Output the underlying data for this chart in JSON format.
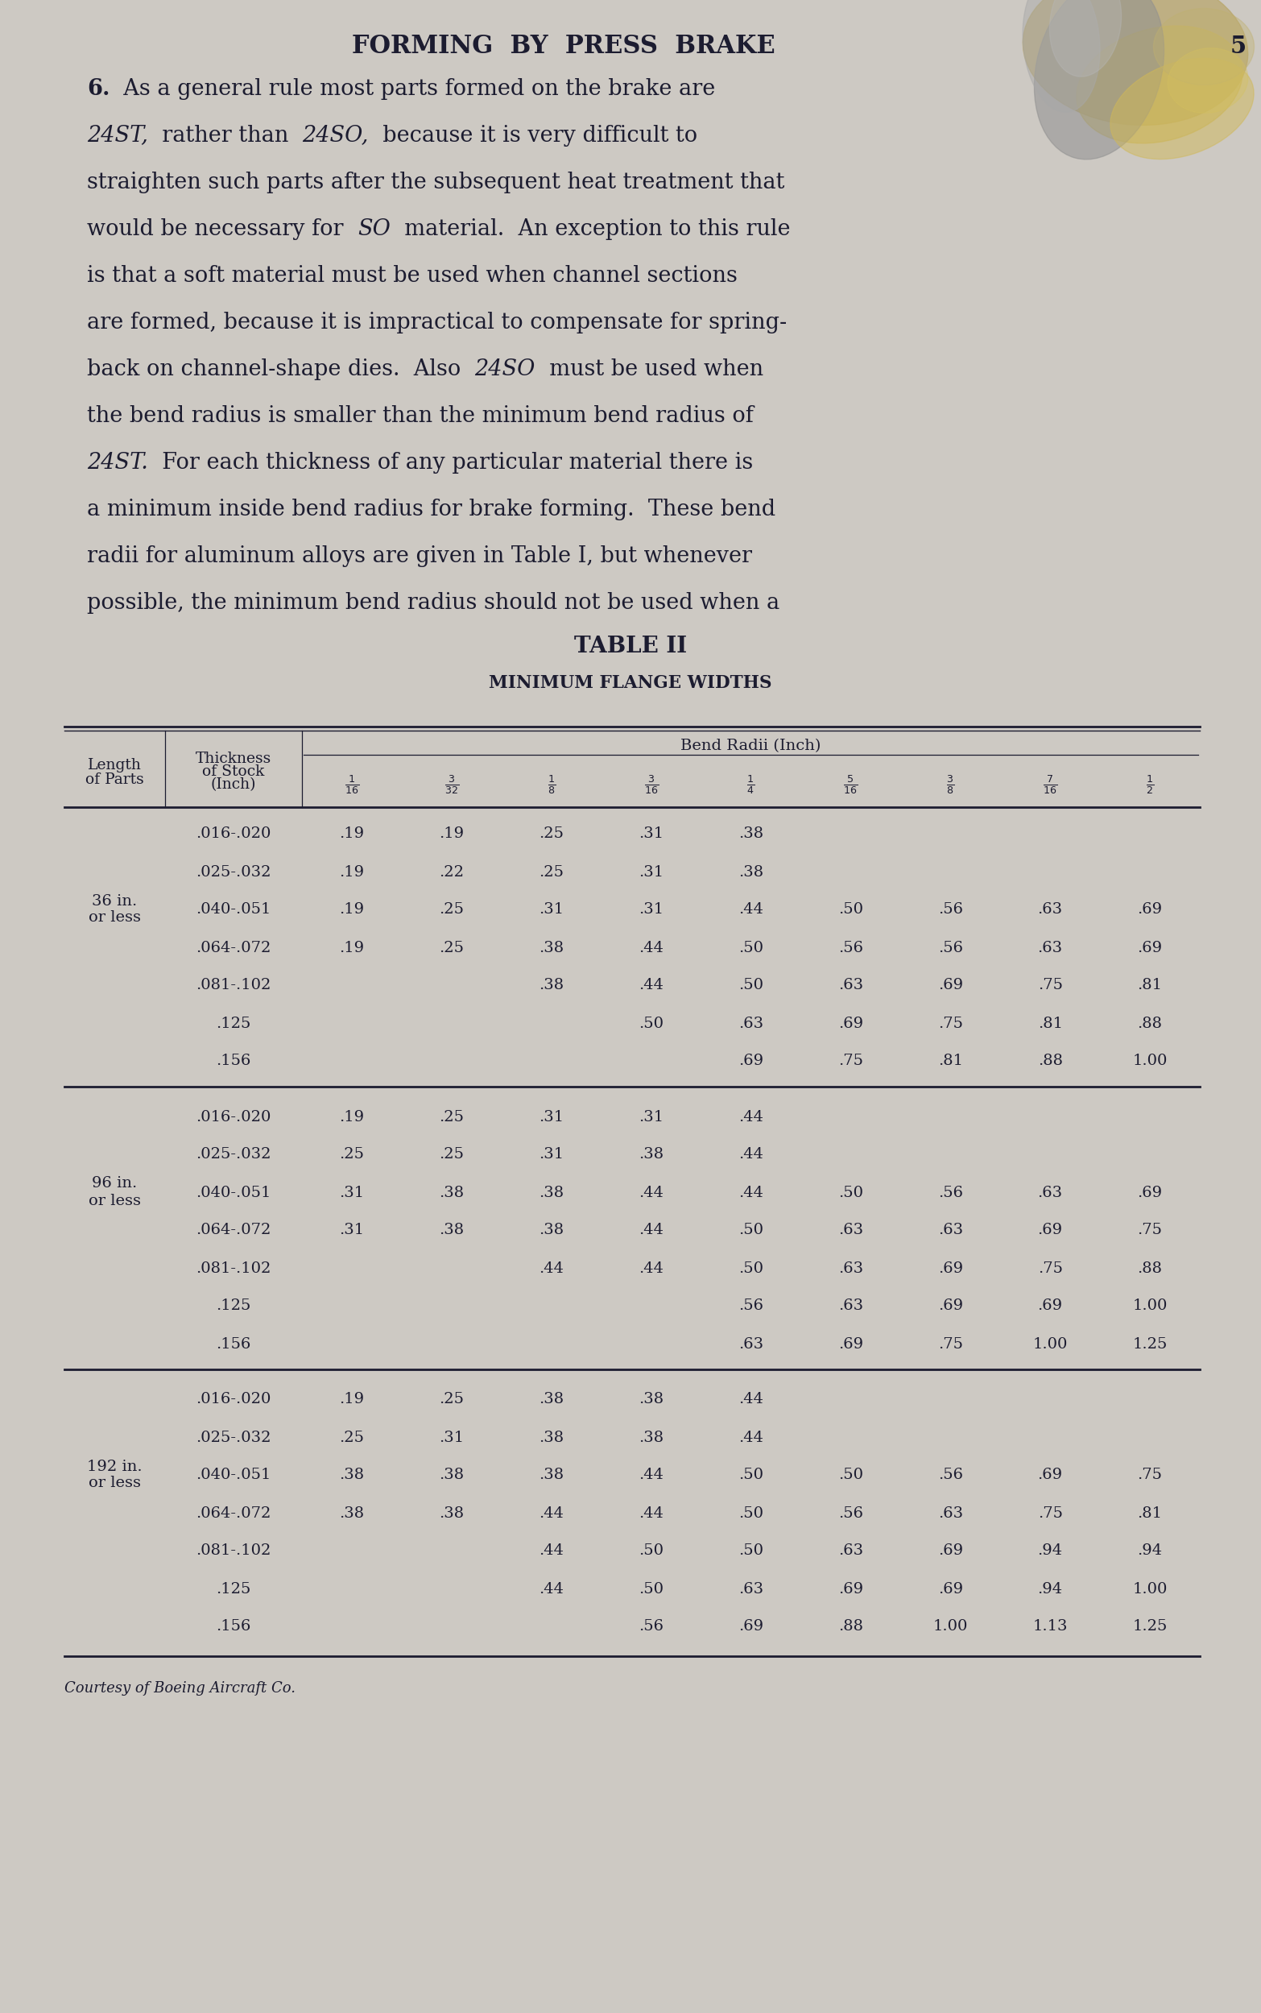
{
  "bg_color": "#cdc9c3",
  "page_title": "FORMING  BY  PRESS  BRAKE",
  "page_number": "5",
  "table_title": "TABLE II",
  "table_subtitle": "MINIMUM FLANGE WIDTHS",
  "fractions_latex": [
    "$\\frac{1}{16}$",
    "$\\frac{3}{32}$",
    "$\\frac{1}{8}$",
    "$\\frac{3}{16}$",
    "$\\frac{1}{4}$",
    "$\\frac{5}{16}$",
    "$\\frac{3}{8}$",
    "$\\frac{7}{16}$",
    "$\\frac{1}{2}$"
  ],
  "sections": [
    {
      "label": [
        "36 in.",
        "or less"
      ],
      "label_row": 2,
      "rows": [
        [
          ".016-.020",
          ".19",
          ".19",
          ".25",
          ".31",
          ".38",
          "",
          "",
          "",
          ""
        ],
        [
          ".025-.032",
          ".19",
          ".22",
          ".25",
          ".31",
          ".38",
          "",
          "",
          "",
          ""
        ],
        [
          ".040-.051",
          ".19",
          ".25",
          ".31",
          ".31",
          ".44",
          ".50",
          ".56",
          ".63",
          ".69"
        ],
        [
          ".064-.072",
          ".19",
          ".25",
          ".38",
          ".44",
          ".50",
          ".56",
          ".56",
          ".63",
          ".69"
        ],
        [
          ".081-.102",
          "",
          "",
          ".38",
          ".44",
          ".50",
          ".63",
          ".69",
          ".75",
          ".81"
        ],
        [
          ".125",
          "",
          "",
          "",
          ".50",
          ".63",
          ".69",
          ".75",
          ".81",
          ".88"
        ],
        [
          ".156",
          "",
          "",
          "",
          "",
          ".69",
          ".75",
          ".81",
          ".88",
          "1.00"
        ]
      ]
    },
    {
      "label": [
        "96 in.",
        "or less"
      ],
      "label_row": 2,
      "rows": [
        [
          ".016-.020",
          ".19",
          ".25",
          ".31",
          ".31",
          ".44",
          "",
          "",
          "",
          ""
        ],
        [
          ".025-.032",
          ".25",
          ".25",
          ".31",
          ".38",
          ".44",
          "",
          "",
          "",
          ""
        ],
        [
          ".040-.051",
          ".31",
          ".38",
          ".38",
          ".44",
          ".44",
          ".50",
          ".56",
          ".63",
          ".69"
        ],
        [
          ".064-.072",
          ".31",
          ".38",
          ".38",
          ".44",
          ".50",
          ".63",
          ".63",
          ".69",
          ".75"
        ],
        [
          ".081-.102",
          "",
          "",
          ".44",
          ".44",
          ".50",
          ".63",
          ".69",
          ".75",
          ".88"
        ],
        [
          ".125",
          "",
          "",
          "",
          "",
          ".56",
          ".63",
          ".69",
          ".69",
          "1.00"
        ],
        [
          ".156",
          "",
          "",
          "",
          "",
          ".63",
          ".69",
          ".75",
          "1.00",
          "1.25"
        ]
      ]
    },
    {
      "label": [
        "192 in.",
        "or less"
      ],
      "label_row": 2,
      "rows": [
        [
          ".016-.020",
          ".19",
          ".25",
          ".38",
          ".38",
          ".44",
          "",
          "",
          "",
          ""
        ],
        [
          ".025-.032",
          ".25",
          ".31",
          ".38",
          ".38",
          ".44",
          "",
          "",
          "",
          ""
        ],
        [
          ".040-.051",
          ".38",
          ".38",
          ".38",
          ".44",
          ".50",
          ".50",
          ".56",
          ".69",
          ".75"
        ],
        [
          ".064-.072",
          ".38",
          ".38",
          ".44",
          ".44",
          ".50",
          ".56",
          ".63",
          ".75",
          ".81"
        ],
        [
          ".081-.102",
          "",
          "",
          ".44",
          ".50",
          ".50",
          ".63",
          ".69",
          ".94",
          ".94"
        ],
        [
          ".125",
          "",
          "",
          ".44",
          ".50",
          ".63",
          ".69",
          ".69",
          ".94",
          "1.00"
        ],
        [
          ".156",
          "",
          "",
          "",
          ".56",
          ".69",
          ".88",
          "1.00",
          "1.13",
          "1.25"
        ]
      ]
    }
  ],
  "footnote": "Courtesy of Boeing Aircraft Co."
}
